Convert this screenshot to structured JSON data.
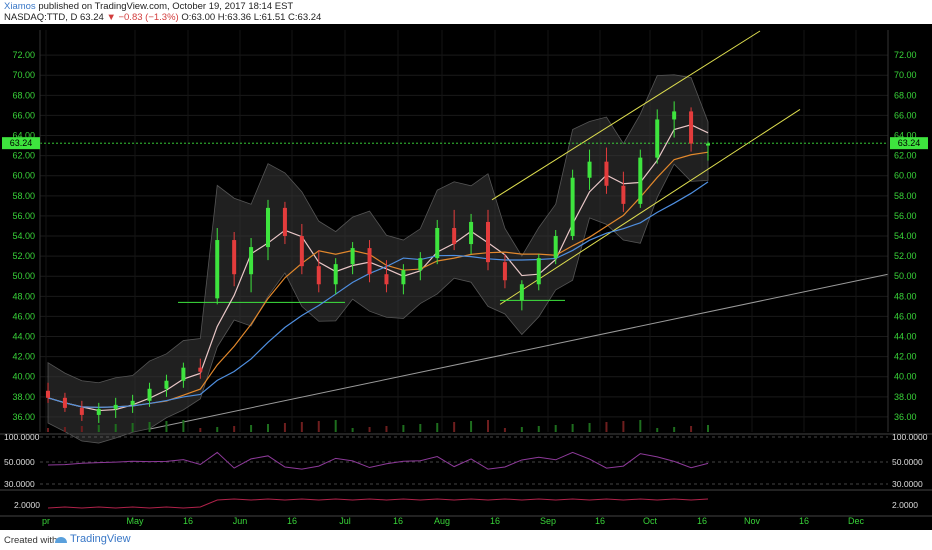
{
  "header": {
    "author": "Xiamos",
    "published_text": "published on TradingView.com, October 19, 2017 18:14 EST",
    "symbol": "NASDAQ:TTD, D",
    "last": "63.24",
    "change": "▼ −0.83 (−1.3%)",
    "open": "O:63.00",
    "high": "H:63.36",
    "low": "L:61.51",
    "close": "C:63.24"
  },
  "footer": {
    "created_with": "Created with",
    "brand": "TradingView"
  },
  "colors": {
    "background": "#000000",
    "up_candle": "#3ee43e",
    "down_candle": "#e33c3c",
    "price_axis": "#39d339",
    "sma_fast": "#e9c7c7",
    "sma_mid": "#e2882c",
    "sma_slow": "#4f8fe0",
    "channel": "#dede4f",
    "trendline": "#9a9a9a",
    "support_line": "#3ee43e",
    "rsi": "#8e3a9a",
    "indicator2": "#b0224a",
    "last_price_tag": "#3ee43e"
  },
  "chart_data": {
    "type": "candlestick",
    "price_axis_ticks": [
      "72.00",
      "70.00",
      "68.00",
      "66.00",
      "64.00",
      "62.00",
      "60.00",
      "58.00",
      "56.00",
      "54.00",
      "52.00",
      "50.00",
      "48.00",
      "46.00",
      "44.00",
      "42.00",
      "40.00",
      "38.00",
      "36.00"
    ],
    "price_range": [
      34.5,
      74.5
    ],
    "last_price_tag": "63.24",
    "time_axis_labels": [
      "pr",
      "May",
      "16",
      "Jun",
      "16",
      "Jul",
      "16",
      "Aug",
      "16",
      "Sep",
      "16",
      "Oct",
      "16",
      "Nov",
      "16",
      "Dec"
    ],
    "candles_sampled": [
      {
        "t": "Apr",
        "o": 38.6,
        "h": 39.4,
        "l": 37.4,
        "c": 37.9
      },
      {
        "t": "Apr",
        "o": 37.9,
        "h": 38.4,
        "l": 36.5,
        "c": 36.9
      },
      {
        "t": "Apr",
        "o": 36.9,
        "h": 37.6,
        "l": 35.6,
        "c": 36.2
      },
      {
        "t": "Apr",
        "o": 36.2,
        "h": 37.4,
        "l": 35.4,
        "c": 36.8
      },
      {
        "t": "Apr",
        "o": 36.8,
        "h": 37.9,
        "l": 35.9,
        "c": 37.2
      },
      {
        "t": "May",
        "o": 37.2,
        "h": 38.2,
        "l": 36.4,
        "c": 37.6
      },
      {
        "t": "May",
        "o": 37.6,
        "h": 39.4,
        "l": 37.0,
        "c": 38.8
      },
      {
        "t": "May",
        "o": 38.8,
        "h": 40.2,
        "l": 38.0,
        "c": 39.6
      },
      {
        "t": "May",
        "o": 39.6,
        "h": 41.4,
        "l": 38.9,
        "c": 40.9
      },
      {
        "t": "May",
        "o": 40.9,
        "h": 41.8,
        "l": 39.8,
        "c": 40.5
      },
      {
        "t": "May",
        "o": 47.8,
        "h": 54.8,
        "l": 47.2,
        "c": 53.6
      },
      {
        "t": "May",
        "o": 53.6,
        "h": 54.4,
        "l": 49.0,
        "c": 50.2
      },
      {
        "t": "May",
        "o": 50.2,
        "h": 53.8,
        "l": 48.4,
        "c": 52.9
      },
      {
        "t": "Jun",
        "o": 52.9,
        "h": 57.6,
        "l": 51.6,
        "c": 56.8
      },
      {
        "t": "Jun",
        "o": 56.8,
        "h": 57.4,
        "l": 53.2,
        "c": 54.0
      },
      {
        "t": "Jun",
        "o": 54.0,
        "h": 55.2,
        "l": 50.2,
        "c": 51.0
      },
      {
        "t": "Jun",
        "o": 51.0,
        "h": 52.6,
        "l": 48.4,
        "c": 49.2
      },
      {
        "t": "Jun",
        "o": 49.2,
        "h": 51.8,
        "l": 48.2,
        "c": 51.2
      },
      {
        "t": "Jun",
        "o": 51.2,
        "h": 53.4,
        "l": 50.2,
        "c": 52.8
      },
      {
        "t": "Jul",
        "o": 52.8,
        "h": 53.6,
        "l": 49.4,
        "c": 50.2
      },
      {
        "t": "Jul",
        "o": 50.2,
        "h": 51.6,
        "l": 48.4,
        "c": 49.2
      },
      {
        "t": "Jul",
        "o": 49.2,
        "h": 51.2,
        "l": 48.2,
        "c": 50.6
      },
      {
        "t": "Jul",
        "o": 50.6,
        "h": 52.4,
        "l": 49.6,
        "c": 51.8
      },
      {
        "t": "Jul",
        "o": 51.8,
        "h": 55.6,
        "l": 51.2,
        "c": 54.8
      },
      {
        "t": "Aug",
        "o": 54.8,
        "h": 56.6,
        "l": 52.6,
        "c": 53.2
      },
      {
        "t": "Aug",
        "o": 53.2,
        "h": 56.2,
        "l": 52.2,
        "c": 55.4
      },
      {
        "t": "Aug",
        "o": 55.4,
        "h": 56.6,
        "l": 50.6,
        "c": 51.4
      },
      {
        "t": "Aug",
        "o": 51.4,
        "h": 52.2,
        "l": 48.8,
        "c": 49.6
      },
      {
        "t": "Aug",
        "o": 47.6,
        "h": 49.6,
        "l": 46.6,
        "c": 49.2
      },
      {
        "t": "Aug",
        "o": 49.2,
        "h": 52.2,
        "l": 48.6,
        "c": 51.8
      },
      {
        "t": "Sep",
        "o": 51.8,
        "h": 54.6,
        "l": 51.2,
        "c": 54.0
      },
      {
        "t": "Sep",
        "o": 54.0,
        "h": 60.6,
        "l": 53.6,
        "c": 59.8
      },
      {
        "t": "Sep",
        "o": 59.8,
        "h": 62.6,
        "l": 58.6,
        "c": 61.4
      },
      {
        "t": "Sep",
        "o": 61.4,
        "h": 62.8,
        "l": 58.2,
        "c": 59.0
      },
      {
        "t": "Sep",
        "o": 59.0,
        "h": 60.4,
        "l": 56.4,
        "c": 57.2
      },
      {
        "t": "Oct",
        "o": 57.2,
        "h": 62.6,
        "l": 56.8,
        "c": 61.8
      },
      {
        "t": "Oct",
        "o": 61.8,
        "h": 66.6,
        "l": 61.2,
        "c": 65.6
      },
      {
        "t": "Oct",
        "o": 65.6,
        "h": 67.4,
        "l": 63.8,
        "c": 66.4
      },
      {
        "t": "Oct",
        "o": 66.4,
        "h": 66.8,
        "l": 62.4,
        "c": 63.2
      },
      {
        "t": "Oct",
        "o": 63.0,
        "h": 63.4,
        "l": 61.5,
        "c": 63.2
      }
    ],
    "rsi_axis_ticks": [
      "100.0000",
      "50.0000",
      "30.0000"
    ],
    "indicator2_axis_ticks": [
      "2.0000"
    ]
  }
}
